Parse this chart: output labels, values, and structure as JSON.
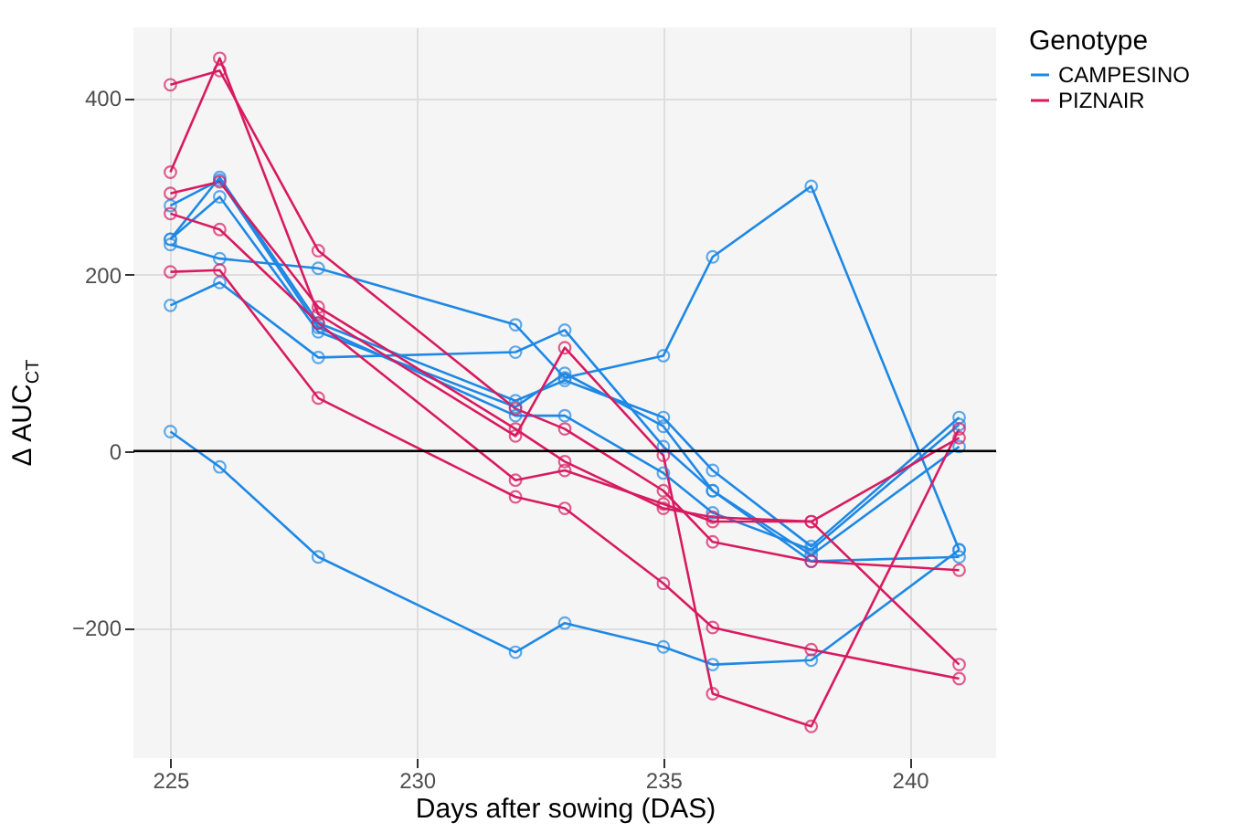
{
  "chart_data": {
    "type": "line",
    "xlabel": "Days after sowing (DAS)",
    "ylabel": "Δ AUC$_{CT}$",
    "legend_title": "Genotype",
    "x": [
      225,
      226,
      228,
      232,
      233,
      235,
      236,
      238,
      241
    ],
    "series": [
      {
        "name": "CAMPESINO",
        "color": "#1e88e5",
        "values": [
          240,
          310,
          145,
          57,
          80,
          38,
          -22,
          -108,
          38
        ]
      },
      {
        "color": "#1e88e5",
        "values": [
          234,
          218,
          207,
          143,
          83,
          108,
          220,
          300,
          -112
        ]
      },
      {
        "color": "#1e88e5",
        "values": [
          278,
          307,
          140,
          40,
          40,
          -25,
          -70,
          -112,
          30
        ]
      },
      {
        "color": "#1e88e5",
        "values": [
          165,
          191,
          106,
          112,
          137,
          5,
          -45,
          -125,
          -120
        ]
      },
      {
        "color": "#1e88e5",
        "values": [
          22,
          -18,
          -120,
          -228,
          -195,
          -222,
          -242,
          -237,
          -112
        ]
      },
      {
        "color": "#1e88e5",
        "values": [
          240,
          288,
          135,
          50,
          88,
          28,
          -45,
          -118,
          5
        ]
      },
      {
        "name": "PIZNAIR",
        "color": "#d81b60",
        "values": [
          415,
          431,
          227,
          48,
          25,
          -45,
          -103,
          -125,
          -135
        ]
      },
      {
        "color": "#d81b60",
        "values": [
          316,
          445,
          155,
          17,
          117,
          -5,
          -275,
          -312,
          25
        ]
      },
      {
        "color": "#d81b60",
        "values": [
          292,
          305,
          163,
          25,
          -12,
          -65,
          -75,
          -80,
          -242
        ]
      },
      {
        "color": "#d81b60",
        "values": [
          269,
          251,
          145,
          -33,
          -22,
          -60,
          -80,
          -80,
          15
        ]
      },
      {
        "color": "#d81b60",
        "values": [
          203,
          205,
          60,
          -52,
          -65,
          -150,
          -200,
          -225,
          -258
        ]
      }
    ],
    "xlim": [
      224.25,
      241.75
    ],
    "xticks": [
      225,
      230,
      235,
      240
    ],
    "ylim": [
      -348,
      480
    ],
    "yticks": [
      -200,
      0,
      200,
      400
    ],
    "ref_lines": [
      {
        "axis": "y",
        "value": 0,
        "color": "#000000"
      }
    ],
    "grid": true,
    "legend": "right",
    "marker": "circle",
    "line_style": "solid"
  }
}
